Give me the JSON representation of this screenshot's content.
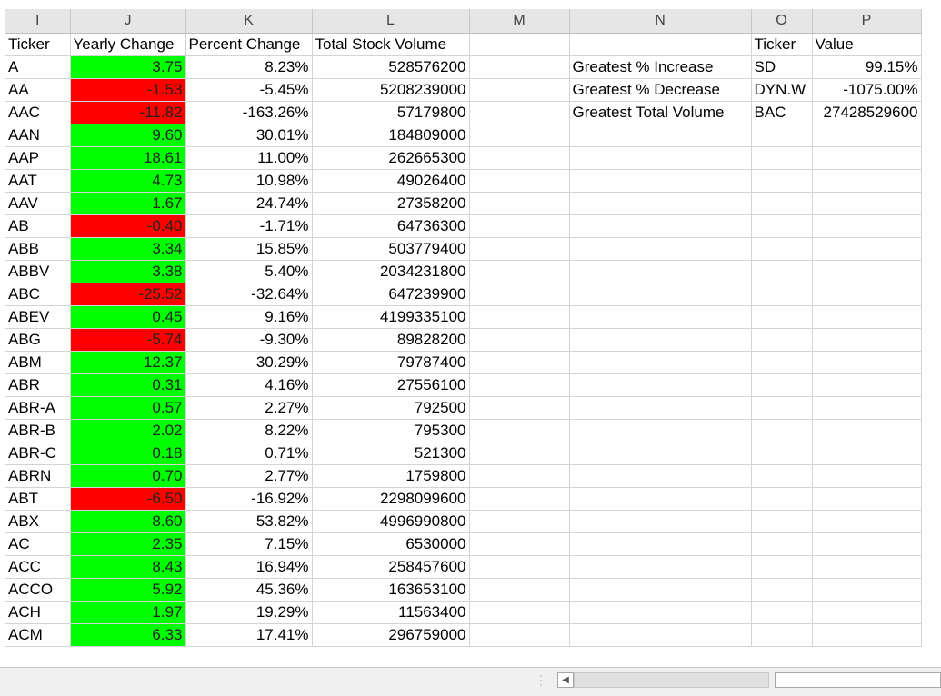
{
  "columns": [
    "I",
    "J",
    "K",
    "L",
    "M",
    "N",
    "O",
    "P"
  ],
  "headers": {
    "ticker": "Ticker",
    "yearly_change": "Yearly Change",
    "percent_change": "Percent Change",
    "total_volume": "Total Stock Volume",
    "summary_ticker": "Ticker",
    "summary_value": "Value"
  },
  "summary": [
    {
      "label": "Greatest % Increase",
      "ticker": "SD",
      "value": "99.15%"
    },
    {
      "label": "Greatest % Decrease",
      "ticker": "DYN.W",
      "value": "-1075.00%"
    },
    {
      "label": "Greatest Total Volume",
      "ticker": "BAC",
      "value": "27428529600"
    }
  ],
  "rows": [
    {
      "ticker": "A",
      "change": "3.75",
      "pct": "8.23%",
      "volume": "528576200",
      "status": "pos"
    },
    {
      "ticker": "AA",
      "change": "-1.53",
      "pct": "-5.45%",
      "volume": "5208239000",
      "status": "neg"
    },
    {
      "ticker": "AAC",
      "change": "-11.82",
      "pct": "-163.26%",
      "volume": "57179800",
      "status": "neg"
    },
    {
      "ticker": "AAN",
      "change": "9.60",
      "pct": "30.01%",
      "volume": "184809000",
      "status": "pos"
    },
    {
      "ticker": "AAP",
      "change": "18.61",
      "pct": "11.00%",
      "volume": "262665300",
      "status": "pos"
    },
    {
      "ticker": "AAT",
      "change": "4.73",
      "pct": "10.98%",
      "volume": "49026400",
      "status": "pos"
    },
    {
      "ticker": "AAV",
      "change": "1.67",
      "pct": "24.74%",
      "volume": "27358200",
      "status": "pos"
    },
    {
      "ticker": "AB",
      "change": "-0.40",
      "pct": "-1.71%",
      "volume": "64736300",
      "status": "neg"
    },
    {
      "ticker": "ABB",
      "change": "3.34",
      "pct": "15.85%",
      "volume": "503779400",
      "status": "pos"
    },
    {
      "ticker": "ABBV",
      "change": "3.38",
      "pct": "5.40%",
      "volume": "2034231800",
      "status": "pos"
    },
    {
      "ticker": "ABC",
      "change": "-25.52",
      "pct": "-32.64%",
      "volume": "647239900",
      "status": "neg"
    },
    {
      "ticker": "ABEV",
      "change": "0.45",
      "pct": "9.16%",
      "volume": "4199335100",
      "status": "pos"
    },
    {
      "ticker": "ABG",
      "change": "-5.74",
      "pct": "-9.30%",
      "volume": "89828200",
      "status": "neg"
    },
    {
      "ticker": "ABM",
      "change": "12.37",
      "pct": "30.29%",
      "volume": "79787400",
      "status": "pos"
    },
    {
      "ticker": "ABR",
      "change": "0.31",
      "pct": "4.16%",
      "volume": "27556100",
      "status": "pos"
    },
    {
      "ticker": "ABR-A",
      "change": "0.57",
      "pct": "2.27%",
      "volume": "792500",
      "status": "pos"
    },
    {
      "ticker": "ABR-B",
      "change": "2.02",
      "pct": "8.22%",
      "volume": "795300",
      "status": "pos"
    },
    {
      "ticker": "ABR-C",
      "change": "0.18",
      "pct": "0.71%",
      "volume": "521300",
      "status": "pos"
    },
    {
      "ticker": "ABRN",
      "change": "0.70",
      "pct": "2.77%",
      "volume": "1759800",
      "status": "pos"
    },
    {
      "ticker": "ABT",
      "change": "-6.50",
      "pct": "-16.92%",
      "volume": "2298099600",
      "status": "neg"
    },
    {
      "ticker": "ABX",
      "change": "8.60",
      "pct": "53.82%",
      "volume": "4996990800",
      "status": "pos"
    },
    {
      "ticker": "AC",
      "change": "2.35",
      "pct": "7.15%",
      "volume": "6530000",
      "status": "pos"
    },
    {
      "ticker": "ACC",
      "change": "8.43",
      "pct": "16.94%",
      "volume": "258457600",
      "status": "pos"
    },
    {
      "ticker": "ACCO",
      "change": "5.92",
      "pct": "45.36%",
      "volume": "163653100",
      "status": "pos"
    },
    {
      "ticker": "ACH",
      "change": "1.97",
      "pct": "19.29%",
      "volume": "11563400",
      "status": "pos"
    },
    {
      "ticker": "ACM",
      "change": "6.33",
      "pct": "17.41%",
      "volume": "296759000",
      "status": "pos"
    }
  ],
  "colors": {
    "positive": "#00ff00",
    "negative": "#ff0000"
  },
  "icons": {
    "scroll_left": "scroll-left-arrow-icon",
    "sheet_options": "vertical-dots-icon"
  }
}
